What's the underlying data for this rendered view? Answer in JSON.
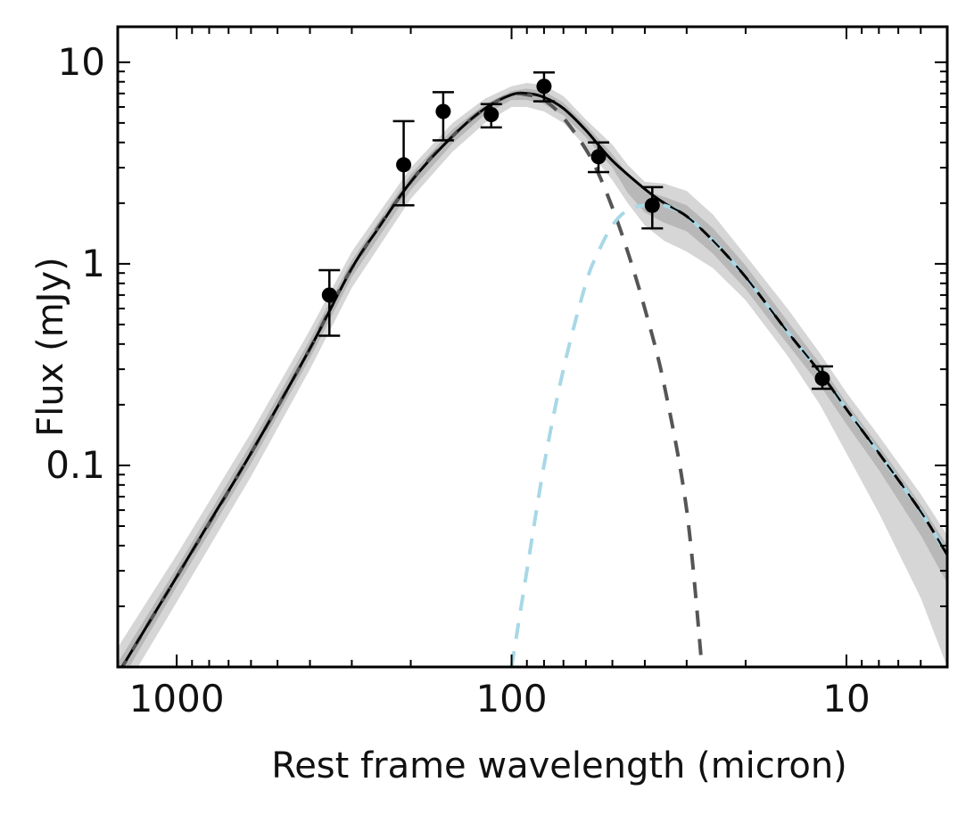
{
  "chart_data": {
    "type": "line",
    "title": "",
    "xlabel": "Rest frame wavelength (micron)",
    "ylabel": "Flux (mJy)",
    "x_scale": "log",
    "y_scale": "log",
    "x_inverted": true,
    "xlim": [
      1500,
      5
    ],
    "ylim": [
      0.01,
      15
    ],
    "xticks": [
      {
        "value": 1000,
        "label": "1000"
      },
      {
        "value": 100,
        "label": "100"
      },
      {
        "value": 10,
        "label": "10"
      }
    ],
    "yticks": [
      {
        "value": 10,
        "label": "10"
      },
      {
        "value": 1,
        "label": "1"
      },
      {
        "value": 0.1,
        "label": "0.1"
      }
    ],
    "grid": false,
    "points": [
      {
        "x": 350,
        "y": 0.7,
        "ylo": 0.44,
        "yhi": 0.93
      },
      {
        "x": 210,
        "y": 3.1,
        "ylo": 1.95,
        "yhi": 5.1
      },
      {
        "x": 160,
        "y": 5.7,
        "ylo": 4.1,
        "yhi": 7.1
      },
      {
        "x": 115,
        "y": 5.5,
        "ylo": 4.75,
        "yhi": 6.2
      },
      {
        "x": 80,
        "y": 7.6,
        "ylo": 6.4,
        "yhi": 8.9
      },
      {
        "x": 55,
        "y": 3.4,
        "ylo": 2.85,
        "yhi": 4.0
      },
      {
        "x": 38,
        "y": 1.95,
        "ylo": 1.5,
        "yhi": 2.4
      },
      {
        "x": 11.8,
        "y": 0.27,
        "ylo": 0.24,
        "yhi": 0.31
      }
    ],
    "series": [
      {
        "name": "total-model",
        "style": "solid",
        "color": "#000000",
        "x": [
          1500,
          1200,
          1000,
          800,
          600,
          400,
          300,
          250,
          200,
          150,
          120,
          100,
          90,
          80,
          70,
          60,
          50,
          40,
          35,
          30,
          25,
          20,
          15,
          12,
          10,
          8,
          6,
          5
        ],
        "y": [
          0.0092,
          0.017,
          0.028,
          0.052,
          0.115,
          0.38,
          0.95,
          1.5,
          2.55,
          4.3,
          5.9,
          6.9,
          7.0,
          6.7,
          5.9,
          4.6,
          3.25,
          2.35,
          2.0,
          1.72,
          1.3,
          0.86,
          0.46,
          0.29,
          0.19,
          0.115,
          0.059,
          0.036
        ]
      },
      {
        "name": "total-model-dashed-overlay",
        "style": "dashed",
        "color": "#000000",
        "x": [
          1500,
          1200,
          1000,
          800,
          600,
          400,
          300,
          250,
          200,
          150,
          120,
          100,
          90,
          80,
          70,
          60,
          50,
          40,
          35,
          30,
          25,
          20,
          15,
          12,
          10,
          8,
          6,
          5
        ],
        "y": [
          0.0092,
          0.017,
          0.028,
          0.052,
          0.115,
          0.38,
          0.95,
          1.5,
          2.55,
          4.3,
          5.9,
          6.9,
          7.0,
          6.7,
          5.9,
          4.6,
          3.25,
          2.35,
          2.0,
          1.72,
          1.3,
          0.86,
          0.46,
          0.29,
          0.19,
          0.115,
          0.059,
          0.036
        ]
      },
      {
        "name": "cold-dust-component",
        "style": "dashed",
        "color": "#555555",
        "x": [
          1500,
          1000,
          600,
          400,
          300,
          200,
          150,
          120,
          100,
          90,
          80,
          70,
          60,
          55,
          50,
          45,
          40,
          35,
          30,
          27
        ],
        "y": [
          0.0092,
          0.028,
          0.115,
          0.38,
          0.95,
          2.55,
          4.3,
          5.9,
          6.9,
          6.9,
          6.5,
          5.3,
          3.7,
          2.8,
          1.9,
          1.15,
          0.6,
          0.25,
          0.06,
          0.01
        ]
      },
      {
        "name": "warm-dust-component",
        "style": "dashed",
        "color": "#a8d8e6",
        "x": [
          100,
          90,
          80,
          70,
          60,
          55,
          50,
          45,
          40,
          35,
          30,
          25,
          20,
          15,
          12,
          10,
          8,
          6,
          5
        ],
        "y": [
          0.01,
          0.03,
          0.1,
          0.3,
          0.8,
          1.15,
          1.55,
          1.85,
          1.95,
          1.95,
          1.72,
          1.3,
          0.86,
          0.46,
          0.29,
          0.19,
          0.115,
          0.059,
          0.036
        ]
      }
    ],
    "bands": [
      {
        "name": "outer-uncertainty-band",
        "color": "#d6d6d6",
        "x": [
          1500,
          1000,
          600,
          400,
          300,
          200,
          150,
          120,
          100,
          90,
          80,
          70,
          60,
          50,
          45,
          40,
          35,
          30,
          25,
          20,
          15,
          12,
          10,
          8,
          6,
          5
        ],
        "upper": [
          0.0125,
          0.036,
          0.145,
          0.47,
          1.15,
          3.0,
          5.0,
          6.6,
          7.6,
          7.9,
          7.7,
          6.8,
          5.2,
          3.9,
          3.1,
          2.55,
          2.5,
          2.3,
          1.75,
          1.1,
          0.6,
          0.36,
          0.23,
          0.14,
          0.072,
          0.045
        ],
        "lower": [
          0.0068,
          0.021,
          0.088,
          0.3,
          0.76,
          2.1,
          3.6,
          5.0,
          6.0,
          6.0,
          5.7,
          5.0,
          3.8,
          2.6,
          2.0,
          1.55,
          1.3,
          1.15,
          0.95,
          0.66,
          0.35,
          0.2,
          0.115,
          0.058,
          0.022,
          0.01
        ]
      },
      {
        "name": "inner-uncertainty-band",
        "color": "#b8b8b8",
        "x": [
          1500,
          1000,
          600,
          400,
          300,
          200,
          150,
          120,
          100,
          90,
          80,
          70,
          60,
          50,
          45,
          40,
          35,
          30,
          25,
          20,
          15,
          12,
          10,
          8,
          6,
          5
        ],
        "upper": [
          0.0105,
          0.031,
          0.128,
          0.42,
          1.04,
          2.78,
          4.65,
          6.2,
          7.2,
          7.4,
          7.2,
          6.3,
          4.9,
          3.5,
          2.8,
          2.3,
          2.15,
          1.95,
          1.5,
          0.98,
          0.52,
          0.32,
          0.205,
          0.125,
          0.064,
          0.04
        ],
        "lower": [
          0.008,
          0.025,
          0.102,
          0.34,
          0.86,
          2.32,
          3.95,
          5.5,
          6.5,
          6.5,
          6.2,
          5.45,
          4.25,
          3.0,
          2.25,
          1.8,
          1.6,
          1.45,
          1.12,
          0.75,
          0.4,
          0.25,
          0.16,
          0.095,
          0.045,
          0.026
        ]
      }
    ]
  }
}
